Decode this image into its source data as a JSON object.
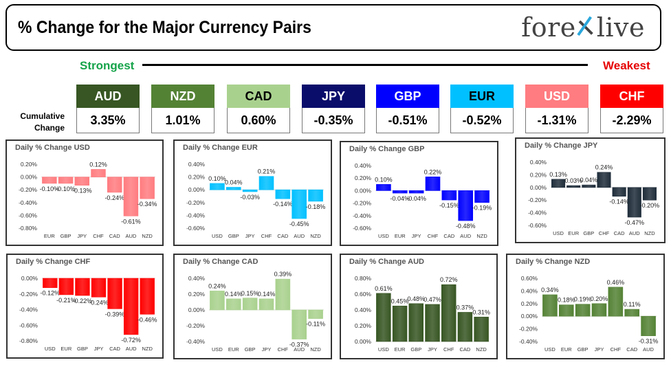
{
  "header": {
    "title": "% Change for the Major Currency Pairs",
    "logo_left": "fore",
    "logo_right": "live"
  },
  "legend": {
    "strongest": "Strongest",
    "weakest": "Weakest",
    "cumulative_label": "Cumulative Change"
  },
  "currencies": [
    {
      "code": "AUD",
      "value": "3.35%",
      "color": "#375623",
      "text_color": "#ffffff"
    },
    {
      "code": "NZD",
      "value": "1.01%",
      "color": "#548235",
      "text_color": "#ffffff"
    },
    {
      "code": "CAD",
      "value": "0.60%",
      "color": "#a9d18e",
      "text_color": "#000000"
    },
    {
      "code": "JPY",
      "value": "-0.35%",
      "color": "#0b0d6b",
      "text_color": "#ffffff"
    },
    {
      "code": "GBP",
      "value": "-0.51%",
      "color": "#0000ff",
      "text_color": "#ffffff"
    },
    {
      "code": "EUR",
      "value": "-0.52%",
      "color": "#00c0ff",
      "text_color": "#000000"
    },
    {
      "code": "USD",
      "value": "-1.31%",
      "color": "#ff7c80",
      "text_color": "#ffffff"
    },
    {
      "code": "CHF",
      "value": "-2.29%",
      "color": "#ff0000",
      "text_color": "#ffffff"
    }
  ],
  "chart_data": [
    {
      "type": "bar",
      "title": "Daily % Change USD",
      "color": "#ff7c80",
      "categories": [
        "EUR",
        "GBP",
        "JPY",
        "CHF",
        "CAD",
        "AUD",
        "NZD"
      ],
      "values": [
        -0.1,
        -0.1,
        -0.13,
        0.12,
        -0.24,
        -0.61,
        -0.34
      ],
      "labels": [
        "-0.10%",
        "-0.10%",
        "-0.13%",
        "0.12%",
        "-0.24%",
        "-0.61%",
        "-0.34%"
      ],
      "yticks": [
        "0.20%",
        "0.00%",
        "-0.20%",
        "-0.40%",
        "-0.60%",
        "-0.80%"
      ],
      "ylim": [
        -0.8,
        0.2
      ]
    },
    {
      "type": "bar",
      "title": "Daily % Change EUR",
      "color": "#00c0ff",
      "categories": [
        "USD",
        "GBP",
        "JPY",
        "CHF",
        "CAD",
        "AUD",
        "NZD"
      ],
      "values": [
        0.1,
        0.04,
        -0.03,
        0.21,
        -0.14,
        -0.45,
        -0.18
      ],
      "labels": [
        "0.10%",
        "0.04%",
        "-0.03%",
        "0.21%",
        "-0.14%",
        "-0.45%",
        "-0.18%"
      ],
      "yticks": [
        "0.40%",
        "0.20%",
        "0.00%",
        "-0.20%",
        "-0.40%",
        "-0.60%"
      ],
      "ylim": [
        -0.6,
        0.4
      ]
    },
    {
      "type": "bar",
      "title": "Daily % Change GBP",
      "color": "#0000ff",
      "categories": [
        "USD",
        "EUR",
        "JPY",
        "CHF",
        "CAD",
        "AUD",
        "NZD"
      ],
      "values": [
        0.1,
        -0.04,
        -0.04,
        0.22,
        -0.15,
        -0.48,
        -0.19
      ],
      "labels": [
        "0.10%",
        "-0.04%",
        "-0.04%",
        "0.22%",
        "-0.15%",
        "-0.48%",
        "-0.19%"
      ],
      "yticks": [
        "0.40%",
        "0.20%",
        "0.00%",
        "-0.20%",
        "-0.40%",
        "-0.60%"
      ],
      "ylim": [
        -0.6,
        0.4
      ]
    },
    {
      "type": "bar",
      "title": "Daily % Change JPY",
      "color": "#1f2d3a",
      "categories": [
        "USD",
        "EUR",
        "GBP",
        "CHF",
        "CAD",
        "AUD",
        "NZD"
      ],
      "values": [
        0.13,
        0.03,
        0.04,
        0.24,
        -0.14,
        -0.47,
        -0.2
      ],
      "labels": [
        "0.13%",
        "0.03%",
        "0.04%",
        "0.24%",
        "-0.14%",
        "-0.47%",
        "-0.20%"
      ],
      "yticks": [
        "0.40%",
        "0.20%",
        "0.00%",
        "-0.20%",
        "-0.40%",
        "-0.60%"
      ],
      "ylim": [
        -0.6,
        0.4
      ]
    },
    {
      "type": "bar",
      "title": "Daily % Change CHF",
      "color": "#ff0000",
      "categories": [
        "USD",
        "EUR",
        "GBP",
        "JPY",
        "CAD",
        "AUD",
        "NZD"
      ],
      "values": [
        -0.12,
        -0.21,
        -0.22,
        -0.24,
        -0.39,
        -0.72,
        -0.46
      ],
      "labels": [
        "-0.12%",
        "-0.21%",
        "-0.22%",
        "-0.24%",
        "-0.39%",
        "-0.72%",
        "-0.46%"
      ],
      "yticks": [
        "0.00%",
        "-0.20%",
        "-0.40%",
        "-0.60%",
        "-0.80%"
      ],
      "ylim": [
        -0.8,
        0.0
      ]
    },
    {
      "type": "bar",
      "title": "Daily % Change CAD",
      "color": "#a9d18e",
      "categories": [
        "USD",
        "EUR",
        "GBP",
        "JPY",
        "CHF",
        "AUD",
        "NZD"
      ],
      "values": [
        0.24,
        0.14,
        0.15,
        0.14,
        0.39,
        -0.37,
        -0.11
      ],
      "labels": [
        "0.24%",
        "0.14%",
        "0.15%",
        "0.14%",
        "0.39%",
        "-0.37%",
        "-0.11%"
      ],
      "yticks": [
        "0.40%",
        "0.20%",
        "0.00%",
        "-0.20%",
        "-0.40%"
      ],
      "ylim": [
        -0.4,
        0.4
      ]
    },
    {
      "type": "bar",
      "title": "Daily % Change AUD",
      "color": "#375623",
      "categories": [
        "USD",
        "EUR",
        "GBP",
        "JPY",
        "CHF",
        "CAD",
        "NZD"
      ],
      "values": [
        0.61,
        0.45,
        0.48,
        0.47,
        0.72,
        0.37,
        0.31
      ],
      "labels": [
        "0.61%",
        "0.45%",
        "0.48%",
        "0.47%",
        "0.72%",
        "0.37%",
        "0.31%"
      ],
      "yticks": [
        "0.80%",
        "0.60%",
        "0.40%",
        "0.20%",
        "0.00%"
      ],
      "ylim": [
        0.0,
        0.8
      ]
    },
    {
      "type": "bar",
      "title": "Daily % Change NZD",
      "color": "#548235",
      "categories": [
        "USD",
        "EUR",
        "GBP",
        "JPY",
        "CHF",
        "CAD",
        "AUD"
      ],
      "values": [
        0.34,
        0.18,
        0.19,
        0.2,
        0.46,
        0.11,
        -0.31
      ],
      "labels": [
        "0.34%",
        "0.18%",
        "0.19%",
        "0.20%",
        "0.46%",
        "0.11%",
        "-0.31%"
      ],
      "yticks": [
        "0.60%",
        "0.40%",
        "0.20%",
        "0.00%",
        "-0.20%",
        "-0.40%"
      ],
      "ylim": [
        -0.4,
        0.6
      ]
    }
  ]
}
